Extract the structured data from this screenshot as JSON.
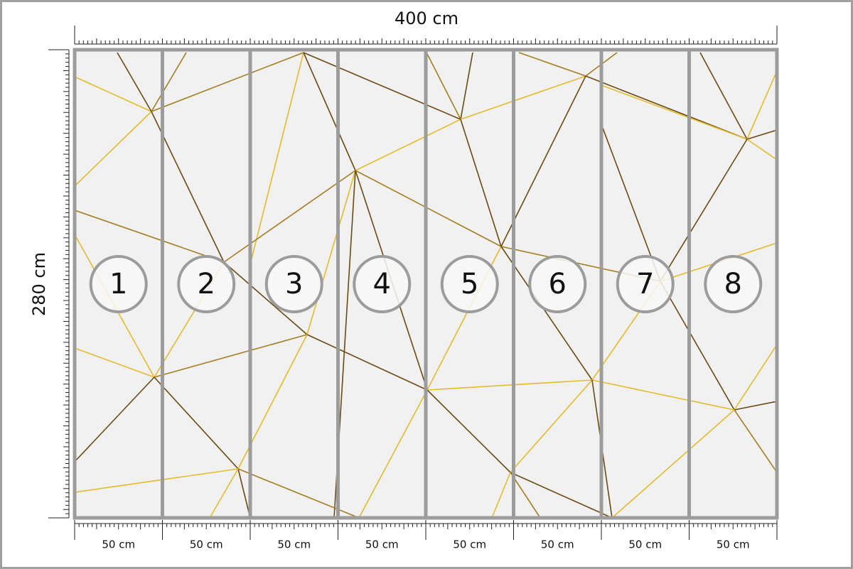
{
  "width_label": "400 cm",
  "height_label": "280 cm",
  "panels": [
    {
      "number": "1",
      "width_label": "50 cm"
    },
    {
      "number": "2",
      "width_label": "50 cm"
    },
    {
      "number": "3",
      "width_label": "50 cm"
    },
    {
      "number": "4",
      "width_label": "50 cm"
    },
    {
      "number": "5",
      "width_label": "50 cm"
    },
    {
      "number": "6",
      "width_label": "50 cm"
    },
    {
      "number": "7",
      "width_label": "50 cm"
    },
    {
      "number": "8",
      "width_label": "50 cm"
    }
  ]
}
